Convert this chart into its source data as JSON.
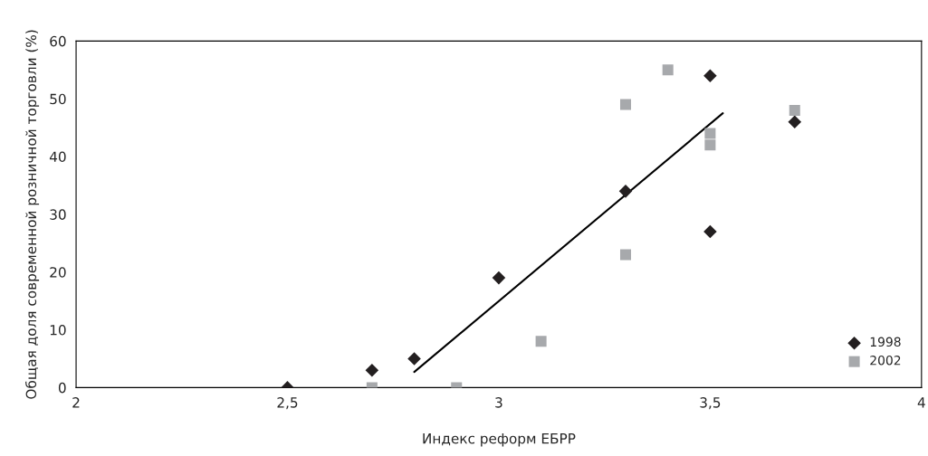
{
  "chart_data": {
    "type": "scatter",
    "xlabel": "Индекс реформ ЕБРР",
    "ylabel": "Общая доля современной розничной торговли (%)",
    "xlim": [
      2,
      4
    ],
    "ylim": [
      0,
      60
    ],
    "xticks": [
      2,
      {
        "value": 2.5,
        "label": "2,5"
      },
      3,
      {
        "value": 3.5,
        "label": "3,5"
      },
      4
    ],
    "yticks": [
      0,
      10,
      20,
      30,
      40,
      50,
      60
    ],
    "grid": false,
    "legend": "bottom right",
    "series": [
      {
        "name": "1998",
        "color": "#231f20",
        "marker": "diamond",
        "x": [
          2.5,
          2.7,
          2.8,
          3.0,
          3.3,
          3.5,
          3.5,
          3.7
        ],
        "values": [
          0,
          3,
          5,
          19,
          34,
          54,
          27,
          46
        ]
      },
      {
        "name": "2002",
        "color": "#a7a9ac",
        "marker": "square",
        "x": [
          2.7,
          2.9,
          3.1,
          3.3,
          3.3,
          3.4,
          3.5,
          3.5,
          3.7
        ],
        "values": [
          0,
          0,
          8,
          49,
          23,
          55,
          44,
          42,
          48
        ]
      },
      {
        "type": "line",
        "color": "#000000",
        "marker": "none",
        "line_style": "solid",
        "x": [
          2.8,
          3.53
        ],
        "values": [
          2.7,
          47.5
        ]
      }
    ]
  }
}
